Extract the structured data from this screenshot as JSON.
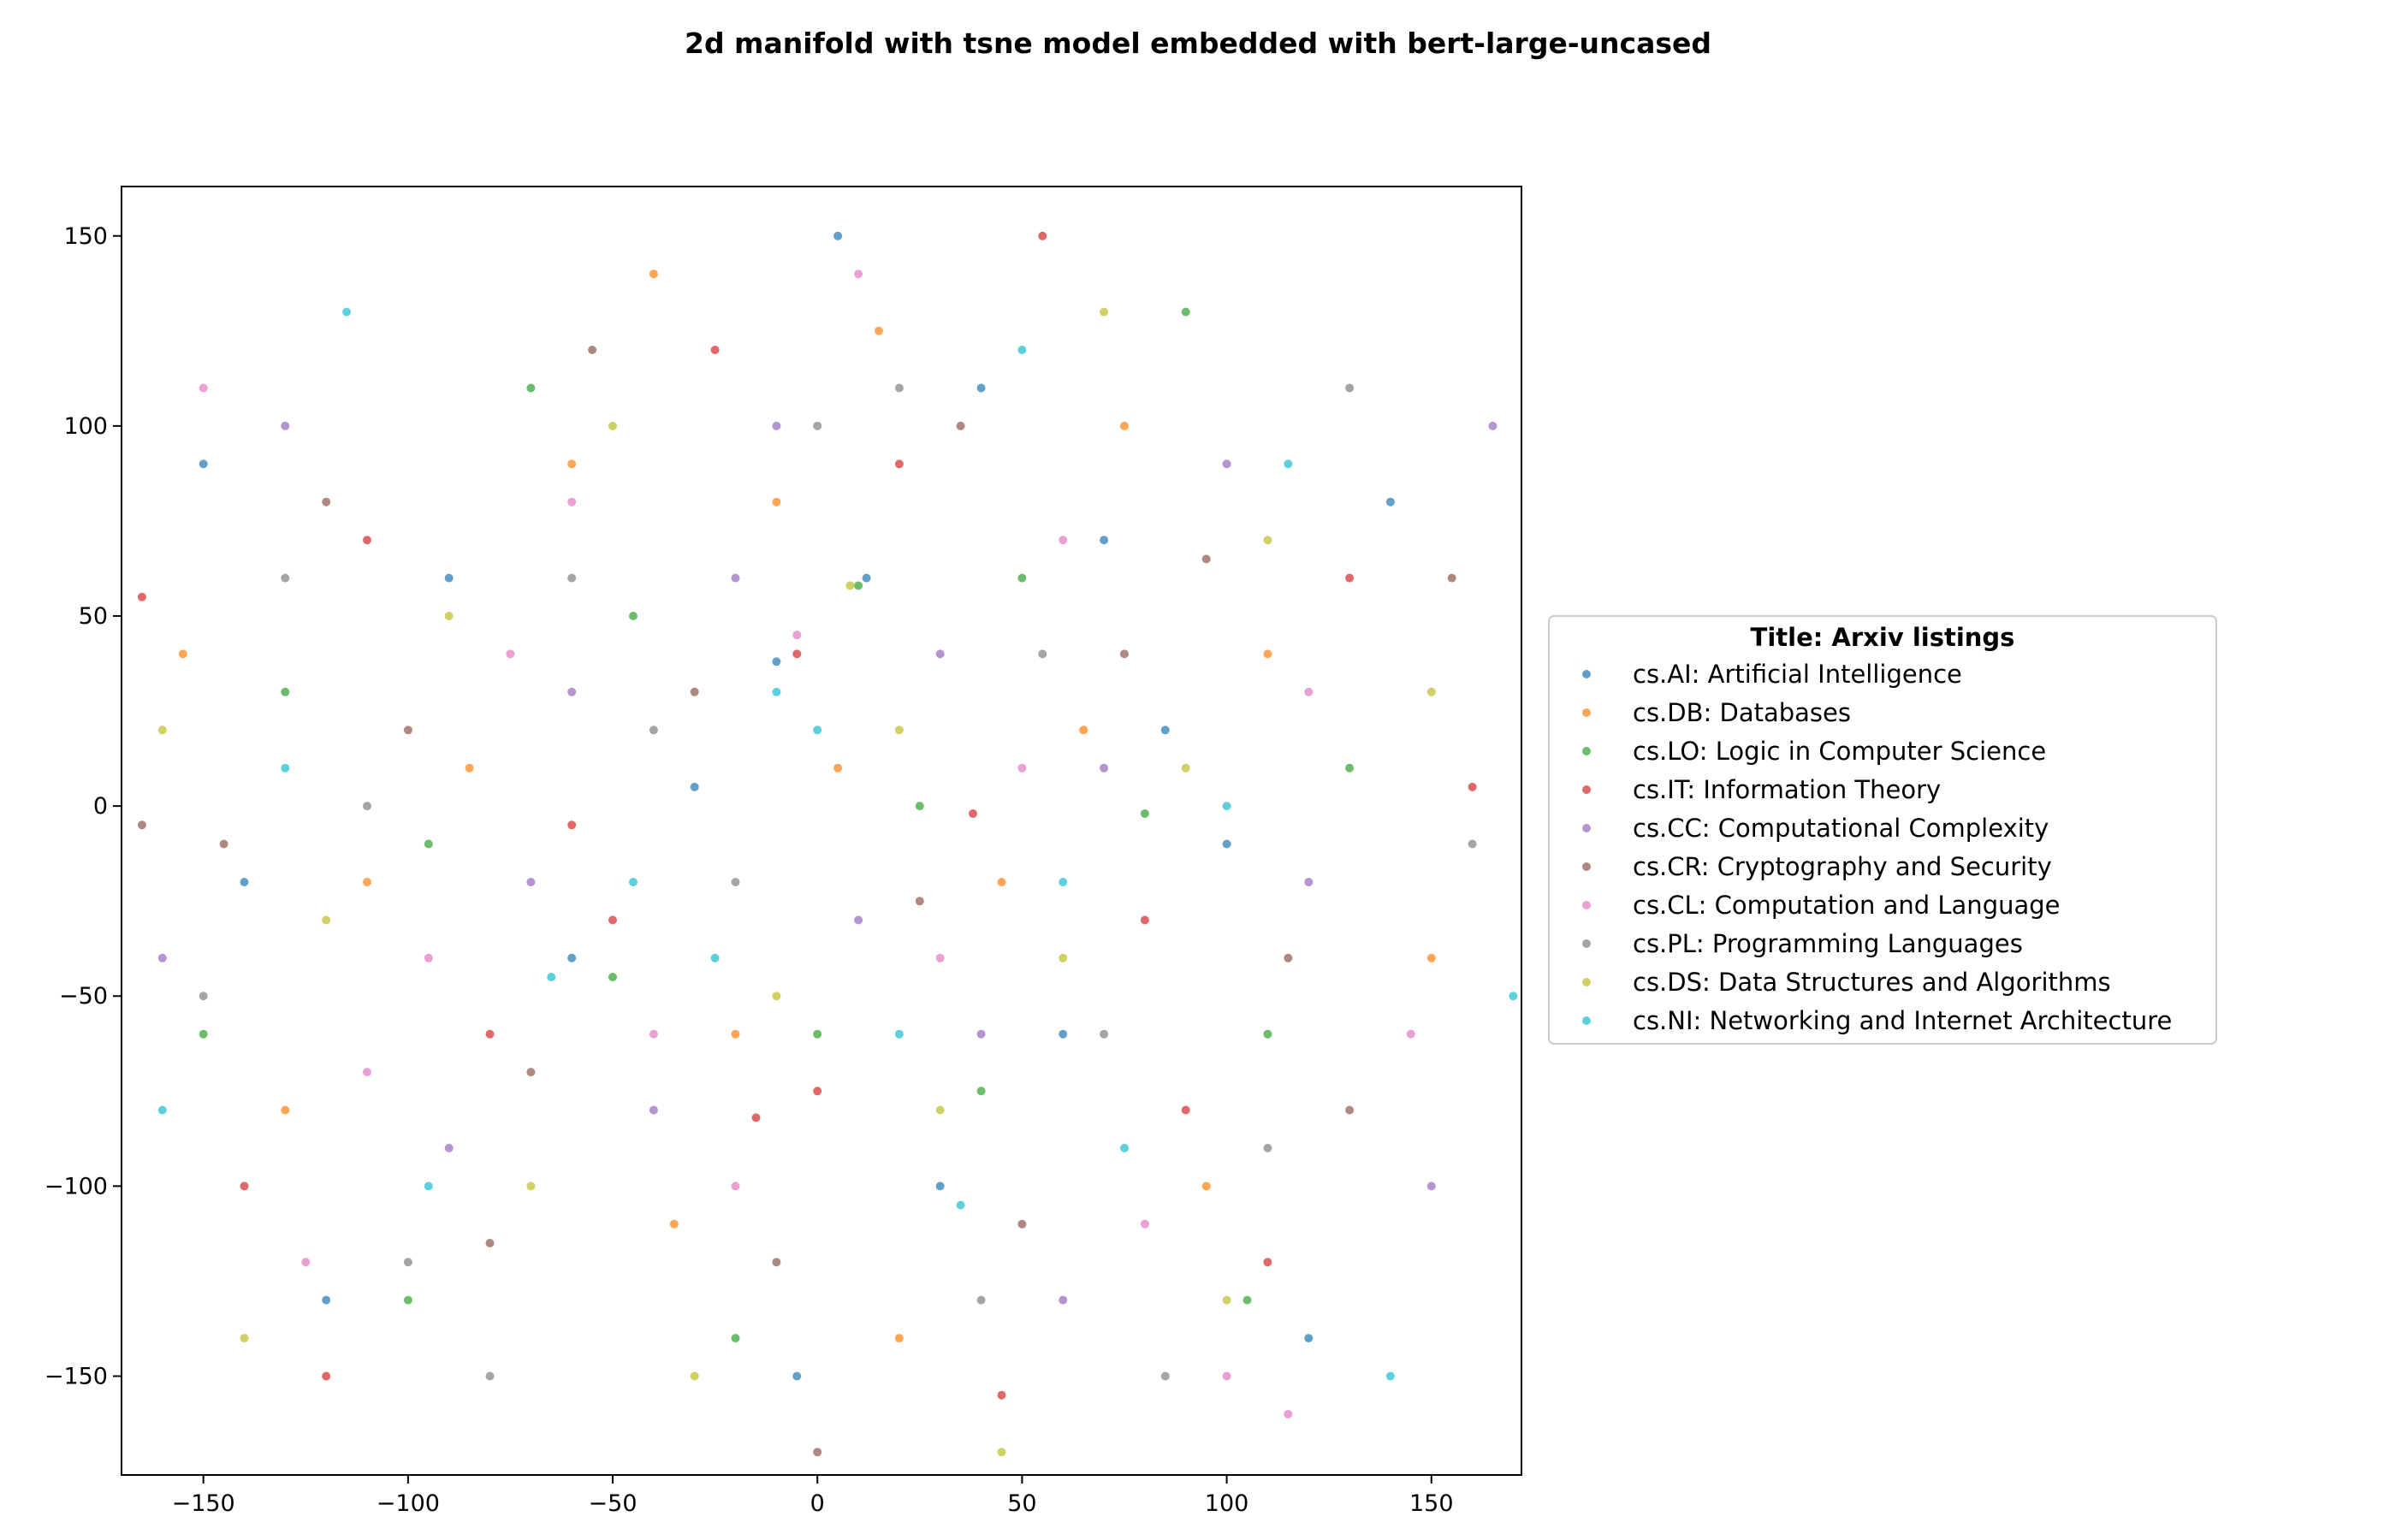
{
  "chart_data": {
    "type": "scatter",
    "title": "2d manifold with tsne model embedded with bert-large-uncased",
    "xlabel": "",
    "ylabel": "",
    "xlim": [
      -170,
      172
    ],
    "ylim": [
      -176,
      163
    ],
    "x_ticks": [
      -150,
      -100,
      -50,
      0,
      50,
      100,
      150
    ],
    "y_ticks": [
      -150,
      -100,
      -50,
      0,
      50,
      100,
      150
    ],
    "grid": false,
    "legend": {
      "title": "Title: Arxiv listings",
      "placement": "center-right outside"
    },
    "series": [
      {
        "name": "cs.AI: Artificial Intelligence",
        "color": "#1f77b4",
        "points": [
          [
            -10,
            38
          ],
          [
            12,
            60
          ],
          [
            -150,
            90
          ],
          [
            140,
            80
          ],
          [
            -60,
            -40
          ],
          [
            30,
            -100
          ],
          [
            85,
            20
          ],
          [
            -120,
            -130
          ],
          [
            5,
            150
          ],
          [
            -30,
            5
          ],
          [
            60,
            -60
          ],
          [
            100,
            -10
          ],
          [
            -90,
            60
          ],
          [
            -5,
            -150
          ],
          [
            120,
            -140
          ],
          [
            40,
            110
          ],
          [
            -140,
            -20
          ],
          [
            70,
            70
          ]
        ]
      },
      {
        "name": "cs.DB: Databases",
        "color": "#ff7f0e",
        "points": [
          [
            -85,
            10
          ],
          [
            -60,
            90
          ],
          [
            5,
            10
          ],
          [
            -20,
            -60
          ],
          [
            75,
            100
          ],
          [
            -110,
            -20
          ],
          [
            45,
            -20
          ],
          [
            -40,
            140
          ],
          [
            110,
            40
          ],
          [
            -130,
            -80
          ],
          [
            20,
            -140
          ],
          [
            95,
            -100
          ],
          [
            -10,
            80
          ],
          [
            150,
            -40
          ],
          [
            -155,
            40
          ],
          [
            65,
            20
          ],
          [
            -35,
            -110
          ],
          [
            15,
            125
          ]
        ]
      },
      {
        "name": "cs.LO: Logic in Computer Science",
        "color": "#2ca02c",
        "points": [
          [
            80,
            -2
          ],
          [
            -100,
            -130
          ],
          [
            10,
            58
          ],
          [
            -50,
            -45
          ],
          [
            110,
            -60
          ],
          [
            -130,
            30
          ],
          [
            40,
            -75
          ],
          [
            -70,
            110
          ],
          [
            130,
            10
          ],
          [
            -20,
            -140
          ],
          [
            90,
            130
          ],
          [
            -150,
            -60
          ],
          [
            0,
            -60
          ],
          [
            50,
            60
          ],
          [
            -95,
            -10
          ],
          [
            25,
            0
          ],
          [
            -45,
            50
          ],
          [
            105,
            -130
          ]
        ]
      },
      {
        "name": "cs.IT: Information Theory",
        "color": "#d62728",
        "points": [
          [
            -15,
            -82
          ],
          [
            38,
            -2
          ],
          [
            -165,
            55
          ],
          [
            110,
            -120
          ],
          [
            -50,
            -30
          ],
          [
            20,
            90
          ],
          [
            -140,
            -100
          ],
          [
            80,
            -30
          ],
          [
            -80,
            -60
          ],
          [
            55,
            150
          ],
          [
            -110,
            70
          ],
          [
            130,
            60
          ],
          [
            0,
            -75
          ],
          [
            -60,
            -5
          ],
          [
            90,
            -80
          ],
          [
            -25,
            120
          ],
          [
            160,
            5
          ],
          [
            -5,
            40
          ],
          [
            45,
            -155
          ],
          [
            -120,
            -150
          ]
        ]
      },
      {
        "name": "cs.CC: Computational Complexity",
        "color": "#9467bd",
        "points": [
          [
            -20,
            60
          ],
          [
            150,
            -100
          ],
          [
            -70,
            -20
          ],
          [
            30,
            40
          ],
          [
            -130,
            100
          ],
          [
            60,
            -130
          ],
          [
            -40,
            -80
          ],
          [
            100,
            90
          ],
          [
            -160,
            -40
          ],
          [
            10,
            -30
          ],
          [
            70,
            10
          ],
          [
            -90,
            -90
          ],
          [
            120,
            -20
          ],
          [
            -10,
            100
          ],
          [
            40,
            -60
          ],
          [
            -60,
            30
          ],
          [
            165,
            100
          ]
        ]
      },
      {
        "name": "cs.CR: Cryptography and Security",
        "color": "#8c564b",
        "points": [
          [
            -120,
            80
          ],
          [
            25,
            -25
          ],
          [
            -80,
            -115
          ],
          [
            130,
            -80
          ],
          [
            -30,
            30
          ],
          [
            75,
            40
          ],
          [
            -145,
            -10
          ],
          [
            50,
            -110
          ],
          [
            -10,
            -120
          ],
          [
            95,
            65
          ],
          [
            -55,
            120
          ],
          [
            115,
            -40
          ],
          [
            -100,
            20
          ],
          [
            0,
            -170
          ],
          [
            155,
            60
          ],
          [
            -70,
            -70
          ],
          [
            35,
            100
          ],
          [
            -165,
            -5
          ]
        ]
      },
      {
        "name": "cs.CL: Computation and Language",
        "color": "#e377c2",
        "points": [
          [
            -5,
            45
          ],
          [
            -110,
            -70
          ],
          [
            60,
            70
          ],
          [
            -40,
            -60
          ],
          [
            100,
            -150
          ],
          [
            -150,
            110
          ],
          [
            30,
            -40
          ],
          [
            -75,
            40
          ],
          [
            120,
            30
          ],
          [
            -20,
            -100
          ],
          [
            80,
            -110
          ],
          [
            -125,
            -120
          ],
          [
            10,
            140
          ],
          [
            -60,
            80
          ],
          [
            145,
            -60
          ],
          [
            50,
            10
          ],
          [
            -95,
            -40
          ],
          [
            115,
            -160
          ]
        ]
      },
      {
        "name": "cs.PL: Programming Languages",
        "color": "#7f7f7f",
        "points": [
          [
            -40,
            20
          ],
          [
            70,
            -60
          ],
          [
            -100,
            -120
          ],
          [
            20,
            110
          ],
          [
            -150,
            -50
          ],
          [
            110,
            -90
          ],
          [
            -60,
            60
          ],
          [
            40,
            -130
          ],
          [
            130,
            110
          ],
          [
            -20,
            -20
          ],
          [
            85,
            -150
          ],
          [
            -130,
            60
          ],
          [
            0,
            100
          ],
          [
            -80,
            -150
          ],
          [
            160,
            -10
          ],
          [
            55,
            40
          ],
          [
            -110,
            0
          ]
        ]
      },
      {
        "name": "cs.DS: Data Structures and Algorithms",
        "color": "#bcbd22",
        "points": [
          [
            8,
            58
          ],
          [
            -90,
            50
          ],
          [
            110,
            70
          ],
          [
            -30,
            -150
          ],
          [
            60,
            -40
          ],
          [
            -140,
            -140
          ],
          [
            90,
            10
          ],
          [
            -50,
            100
          ],
          [
            30,
            -80
          ],
          [
            -120,
            -30
          ],
          [
            150,
            30
          ],
          [
            -10,
            -50
          ],
          [
            70,
            130
          ],
          [
            -70,
            -100
          ],
          [
            100,
            -130
          ],
          [
            -160,
            20
          ],
          [
            20,
            20
          ],
          [
            45,
            -170
          ]
        ]
      },
      {
        "name": "cs.NI: Networking and Internet Architecture",
        "color": "#17becf",
        "points": [
          [
            -65,
            -45
          ],
          [
            -130,
            10
          ],
          [
            35,
            -105
          ],
          [
            115,
            90
          ],
          [
            -25,
            -40
          ],
          [
            75,
            -90
          ],
          [
            -160,
            -80
          ],
          [
            0,
            20
          ],
          [
            140,
            -150
          ],
          [
            -95,
            -100
          ],
          [
            50,
            120
          ],
          [
            -45,
            -20
          ],
          [
            100,
            0
          ],
          [
            -115,
            130
          ],
          [
            20,
            -60
          ],
          [
            170,
            -50
          ],
          [
            -10,
            30
          ],
          [
            60,
            -20
          ]
        ]
      }
    ]
  }
}
